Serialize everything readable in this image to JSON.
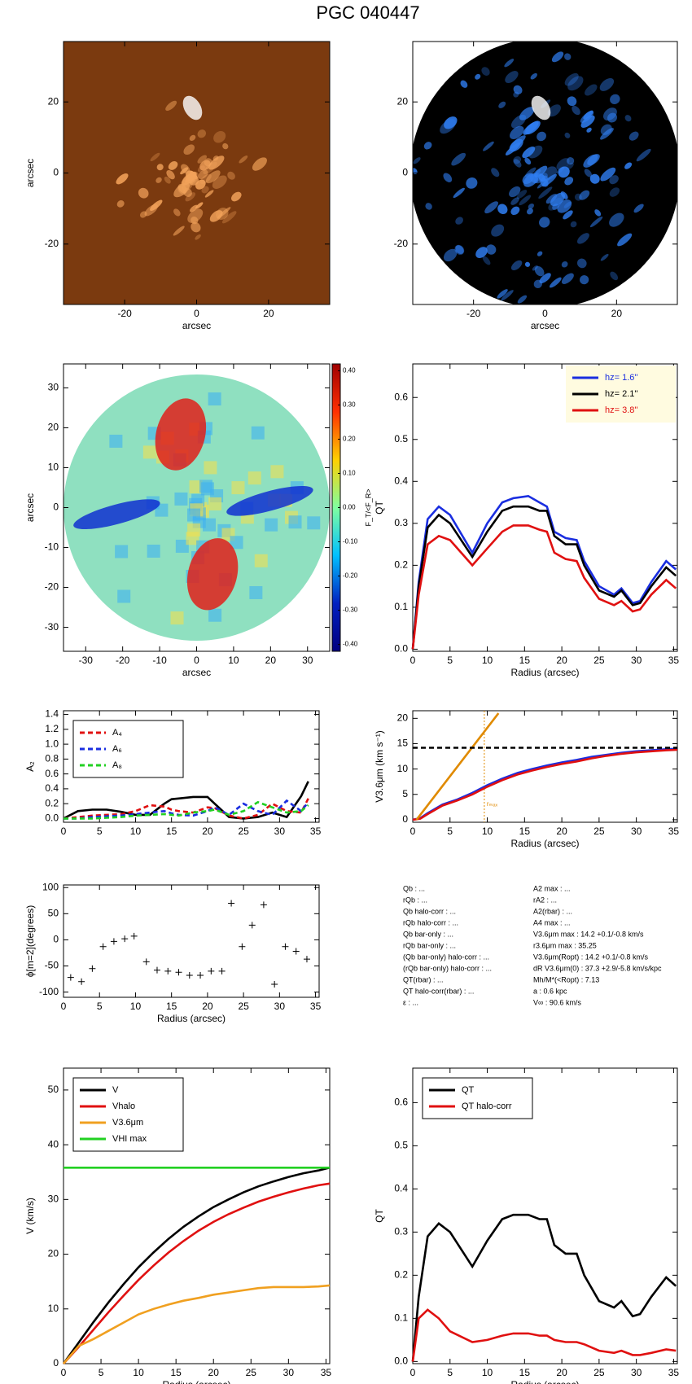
{
  "title": "PGC 040447",
  "chart_data": [
    {
      "type": "image",
      "xlabel": "arcsec",
      "ylabel": "arcsec",
      "xlim": [
        -37,
        37
      ],
      "ylim": [
        -37,
        37
      ],
      "xticks": [
        -20,
        0,
        20
      ],
      "yticks": [
        -20,
        0,
        20
      ],
      "color": "#7b3a0f",
      "blob_color": "#f2a25a"
    },
    {
      "type": "image",
      "xlabel": "arcsec",
      "xlim": [
        -37,
        37
      ],
      "ylim": [
        -37,
        37
      ],
      "xticks": [
        -20,
        0,
        20
      ],
      "yticks": [
        -20,
        0,
        20
      ],
      "color": "#000000",
      "blob_color": "#2f7df0"
    },
    {
      "type": "image",
      "xlabel": "arcsec",
      "ylabel": "arcsec",
      "xlim": [
        -36,
        36
      ],
      "ylim": [
        -36,
        36
      ],
      "xticks": [
        -30,
        -20,
        -10,
        0,
        10,
        20,
        30
      ],
      "yticks": [
        -30,
        -20,
        -10,
        0,
        10,
        20,
        30
      ],
      "color": "#8fe0c0",
      "blob_color": "#e0201a",
      "colorbar": {
        "label": "F_T/<F_R>",
        "lim": [
          -0.42,
          0.42
        ],
        "ticks": [
          {
            "value": 0.4,
            "label": "0.40"
          },
          {
            "value": 0.3,
            "label": "0.30"
          },
          {
            "value": 0.2,
            "label": "0.20"
          },
          {
            "value": 0.1,
            "label": "0.10"
          },
          {
            "value": 0,
            "label": "0.00"
          },
          {
            "value": -0.1,
            "label": "-0.10"
          },
          {
            "value": -0.2,
            "label": "-0.20"
          },
          {
            "value": -0.3,
            "label": "-0.30"
          },
          {
            "value": -0.4,
            "label": "-0.40"
          }
        ]
      }
    },
    {
      "type": "line",
      "xlabel": "Radius (arcsec)",
      "ylabel": "QT",
      "xlim": [
        0,
        35.5
      ],
      "ylim": [
        -0.005,
        0.68
      ],
      "xticks": [
        0,
        5,
        10,
        15,
        20,
        25,
        30,
        35
      ],
      "yticks": [
        {
          "value": 0,
          "label": "0.0"
        },
        0.1,
        0.2,
        0.3,
        0.4,
        0.5,
        0.6
      ],
      "legend": "upper right",
      "legend_color": "#fffbe0",
      "x": [
        0,
        0.8,
        2,
        3.5,
        5,
        8,
        10,
        12,
        13.5,
        15.5,
        17,
        18,
        19,
        20.5,
        22,
        23,
        25,
        27,
        28,
        29.5,
        30.5,
        32,
        34,
        35.3
      ],
      "series": [
        {
          "name": "hz=  1.6''",
          "color": "#1a2ee0",
          "values": [
            0,
            0.16,
            0.31,
            0.34,
            0.32,
            0.23,
            0.3,
            0.35,
            0.36,
            0.365,
            0.35,
            0.34,
            0.28,
            0.265,
            0.26,
            0.21,
            0.15,
            0.13,
            0.145,
            0.11,
            0.115,
            0.16,
            0.21,
            0.19
          ]
        },
        {
          "name": "hz=  2.1''",
          "color": "#000000",
          "values": [
            0,
            0.15,
            0.29,
            0.32,
            0.3,
            0.22,
            0.28,
            0.33,
            0.34,
            0.34,
            0.33,
            0.33,
            0.27,
            0.25,
            0.25,
            0.2,
            0.14,
            0.125,
            0.14,
            0.105,
            0.11,
            0.15,
            0.195,
            0.175
          ]
        },
        {
          "name": "hz=  3.8''",
          "color": "#e01010",
          "values": [
            0,
            0.13,
            0.25,
            0.27,
            0.26,
            0.2,
            0.24,
            0.28,
            0.295,
            0.295,
            0.285,
            0.28,
            0.23,
            0.215,
            0.21,
            0.17,
            0.12,
            0.105,
            0.115,
            0.09,
            0.095,
            0.13,
            0.165,
            0.145
          ]
        }
      ]
    },
    {
      "type": "line",
      "xlabel": "",
      "ylabel": "A₂",
      "xlim": [
        0,
        35.5
      ],
      "ylim": [
        -0.05,
        1.45
      ],
      "xticks": [
        0,
        5,
        10,
        15,
        20,
        25,
        30,
        35
      ],
      "yticks": [
        {
          "value": 0,
          "label": "0.0"
        },
        0.2,
        0.4,
        0.6,
        0.8,
        {
          "value": 1,
          "label": "1.0"
        },
        1.2,
        1.4
      ],
      "legend": "upper left",
      "x": [
        0,
        2,
        4,
        6,
        8,
        10,
        12,
        14,
        15,
        16,
        18,
        20,
        21,
        23,
        25,
        27,
        29,
        31,
        33,
        34
      ],
      "series": [
        {
          "color": "#000000",
          "values": [
            0,
            0.1,
            0.12,
            0.12,
            0.09,
            0.05,
            0.05,
            0.2,
            0.26,
            0.27,
            0.29,
            0.29,
            0.2,
            0.02,
            0,
            0.02,
            0.08,
            0.02,
            0.3,
            0.5
          ]
        },
        {
          "name": "A₄",
          "color": "#e01010",
          "dash": true,
          "values": [
            0,
            0.02,
            0.04,
            0.05,
            0.06,
            0.1,
            0.18,
            0.16,
            0.12,
            0.1,
            0.08,
            0.15,
            0.14,
            0.04,
            0,
            0.05,
            0.2,
            0.1,
            0.08,
            0.27
          ]
        },
        {
          "name": "A₆",
          "color": "#1a2ee0",
          "dash": true,
          "values": [
            0,
            0,
            0.02,
            0.03,
            0.04,
            0.06,
            0.08,
            0.1,
            0.07,
            0.05,
            0.04,
            0.1,
            0.15,
            0.05,
            0.2,
            0.1,
            0.05,
            0.24,
            0.1,
            0.22
          ]
        },
        {
          "name": "A₈",
          "color": "#22d022",
          "dash": true,
          "values": [
            0,
            0,
            0,
            0.01,
            0.02,
            0.04,
            0.05,
            0.06,
            0.05,
            0.04,
            0.08,
            0.1,
            0.12,
            0.05,
            0.1,
            0.22,
            0.15,
            0.08,
            0.1,
            0.18
          ]
        }
      ]
    },
    {
      "type": "line",
      "xlabel": "Radius (arcsec)",
      "ylabel": "V3.6μm (km s⁻¹)",
      "xlim": [
        0,
        35.5
      ],
      "ylim": [
        -0.5,
        21.5
      ],
      "xticks": [
        0,
        5,
        10,
        15,
        20,
        25,
        30,
        35
      ],
      "yticks": [
        0,
        5,
        10,
        15,
        20
      ],
      "x": [
        0,
        1,
        2,
        4,
        6,
        8,
        10,
        12,
        14,
        16,
        18,
        20,
        22,
        24,
        26,
        28,
        30,
        32,
        34,
        35.5
      ],
      "vline": {
        "value": 9.6,
        "color": "#e08a00",
        "label": "rₘₐₓ"
      },
      "series": [
        {
          "color": "#1a2ee0",
          "values": [
            0,
            0.3,
            1.3,
            3,
            4,
            5.3,
            6.8,
            8.1,
            9.2,
            10,
            10.7,
            11.3,
            11.8,
            12.4,
            12.8,
            13.2,
            13.5,
            13.7,
            13.9,
            14
          ]
        },
        {
          "color": "#e01010",
          "values": [
            0,
            0.2,
            1.1,
            2.8,
            3.8,
            5,
            6.5,
            7.8,
            8.9,
            9.7,
            10.4,
            11,
            11.5,
            12.1,
            12.6,
            13,
            13.3,
            13.5,
            13.7,
            13.8
          ]
        },
        {
          "color": "#e08a00",
          "x": [
            0.5,
            11.5
          ],
          "values": [
            0,
            21
          ]
        },
        {
          "color": "#000000",
          "dash": true,
          "x": [
            0,
            35.5
          ],
          "values": [
            14.2,
            14.2
          ]
        }
      ]
    },
    {
      "type": "scatter",
      "xlabel": "Radius (arcsec)",
      "ylabel": "ϕ[m=2](degrees)",
      "xlim": [
        0,
        35.5
      ],
      "ylim": [
        -110,
        105
      ],
      "xticks": [
        0,
        5,
        10,
        15,
        20,
        25,
        30,
        35
      ],
      "yticks": [
        -100,
        -50,
        0,
        50,
        100
      ],
      "color": "#000000",
      "x": [
        1,
        2.5,
        4,
        5.5,
        7,
        8.5,
        9.8,
        11.5,
        13,
        14.5,
        16,
        17.5,
        19,
        20.5,
        22,
        23.3,
        24.8,
        26.2,
        27.8,
        29.3,
        30.8,
        32.3,
        33.8
      ],
      "values": [
        -72,
        -80,
        -55,
        -13,
        -3,
        2,
        7,
        -42,
        -58,
        -60,
        -62,
        -68,
        -68,
        -60,
        -60,
        70,
        -13,
        28,
        67,
        -85,
        -13,
        -22,
        -37
      ]
    },
    {
      "type": "text",
      "left": [
        "Qb : ...",
        "rQb : ...",
        "Qb halo-corr : ...",
        "rQb halo-corr : ...",
        "Qb bar-only : ...",
        "rQb bar-only : ...",
        "(Qb bar-only) halo-corr : ...",
        "(rQb bar-only) halo-corr : ...",
        "QT(rbar) : ...",
        "QT halo-corr(rbar) : ...",
        "ε : ..."
      ],
      "right": [
        "A2 max : ...",
        "rA2 : ...",
        "A2(rbar) : ...",
        "A4 max : ...",
        "V3.6μm max :  14.2 +0.1/-0.8 km/s",
        "r3.6μm max :  35.25",
        "V3.6μm(Ropt) :  14.2 +0.1/-0.8 km/s",
        "dR V3.6μm(0) :  37.3 +2.9/-5.8 km/s/kpc",
        "Mh/M*(<Ropt) :  7.13",
        "a :   0.6 kpc",
        "V∞ :   90.6 km/s"
      ]
    },
    {
      "type": "line",
      "xlabel": "Radius (arcsec)",
      "ylabel": "V (km/s)",
      "xlim": [
        0,
        35.5
      ],
      "ylim": [
        0,
        54
      ],
      "xticks": [
        0,
        5,
        10,
        15,
        20,
        25,
        30,
        35
      ],
      "yticks": [
        0,
        10,
        20,
        30,
        40,
        50
      ],
      "legend": "upper left",
      "x": [
        0,
        2,
        4,
        6,
        8,
        10,
        12,
        14,
        16,
        18,
        20,
        22,
        24,
        26,
        28,
        30,
        32,
        34,
        35.5
      ],
      "series": [
        {
          "name": "V",
          "color": "#000000",
          "values": [
            0,
            3.8,
            7.6,
            11.2,
            14.5,
            17.6,
            20.3,
            22.8,
            25,
            26.9,
            28.6,
            30,
            31.3,
            32.4,
            33.3,
            34.1,
            34.8,
            35.3,
            35.8
          ]
        },
        {
          "name": "Vhalo",
          "color": "#e01010",
          "values": [
            0,
            3,
            6.2,
            9.4,
            12.4,
            15.3,
            17.9,
            20.3,
            22.4,
            24.3,
            25.9,
            27.3,
            28.5,
            29.6,
            30.5,
            31.3,
            32,
            32.6,
            32.9
          ]
        },
        {
          "name": "V3.6μm",
          "color": "#f0a020",
          "values": [
            0,
            3.2,
            4.5,
            6,
            7.5,
            9,
            10,
            10.8,
            11.5,
            12,
            12.6,
            13,
            13.4,
            13.8,
            14,
            14,
            14,
            14.1,
            14.3
          ]
        },
        {
          "name": "VHI max",
          "color": "#22d022",
          "x": [
            0,
            35.5
          ],
          "values": [
            35.8,
            35.8
          ]
        }
      ]
    },
    {
      "type": "line",
      "xlabel": "Radius (arcsec)",
      "ylabel": "QT",
      "xlim": [
        0,
        35.5
      ],
      "ylim": [
        -0.005,
        0.68
      ],
      "xticks": [
        0,
        5,
        10,
        15,
        20,
        25,
        30,
        35
      ],
      "yticks": [
        {
          "value": 0,
          "label": "0.0"
        },
        0.1,
        0.2,
        0.3,
        0.4,
        0.5,
        0.6
      ],
      "legend": "upper left",
      "x": [
        0,
        0.8,
        2,
        3.5,
        5,
        8,
        10,
        12,
        13.5,
        15.5,
        17,
        18,
        19,
        20.5,
        22,
        23,
        25,
        27,
        28,
        29.5,
        30.5,
        32,
        34,
        35.3
      ],
      "series": [
        {
          "name": "QT",
          "color": "#000000",
          "values": [
            0,
            0.15,
            0.29,
            0.32,
            0.3,
            0.22,
            0.28,
            0.33,
            0.34,
            0.34,
            0.33,
            0.33,
            0.27,
            0.25,
            0.25,
            0.2,
            0.14,
            0.125,
            0.14,
            0.105,
            0.11,
            0.15,
            0.195,
            0.175
          ]
        },
        {
          "name": "QT halo-corr",
          "color": "#e01010",
          "values": [
            0,
            0.1,
            0.12,
            0.1,
            0.07,
            0.045,
            0.05,
            0.06,
            0.065,
            0.065,
            0.06,
            0.06,
            0.05,
            0.045,
            0.045,
            0.04,
            0.025,
            0.02,
            0.025,
            0.015,
            0.015,
            0.02,
            0.028,
            0.025
          ]
        }
      ]
    }
  ]
}
